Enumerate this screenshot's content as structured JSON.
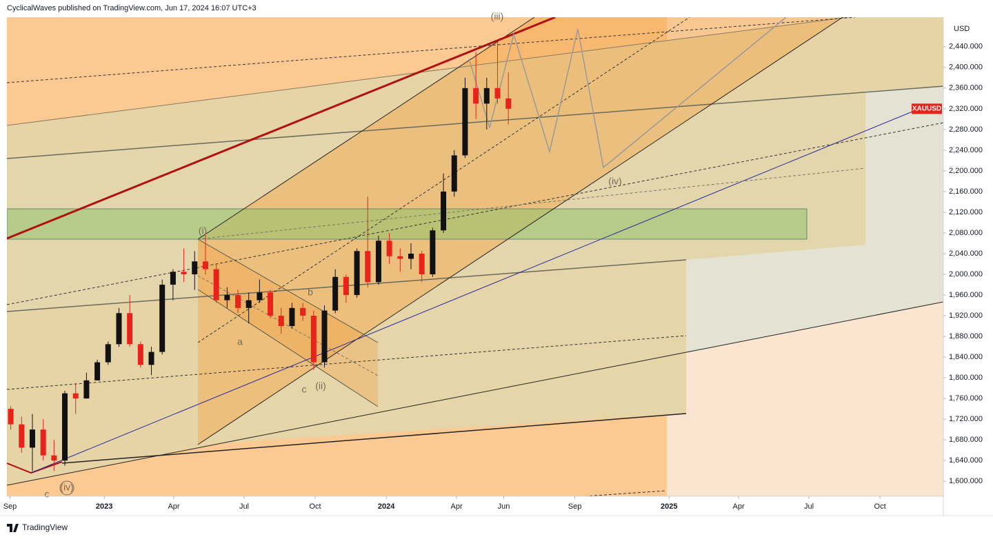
{
  "header": {
    "title": "CyclicalWaves published on TradingView.com, Jun 17, 2024 16:07 UTC+3"
  },
  "footer": {
    "brand": "TradingView"
  },
  "chart_data": {
    "type": "candlestick",
    "symbol": "XAUUSD",
    "currency": "USD",
    "up_color": "#111111",
    "down_color": "#e8231b",
    "annotations": [
      "(iii)",
      "(i)",
      "a",
      "b",
      "c",
      "(ii)",
      "(iv)",
      "c",
      "(iv)"
    ],
    "x": [
      "2022-09-02",
      "2022-09-16",
      "2022-09-30",
      "2022-10-14",
      "2022-10-28",
      "2022-11-11",
      "2022-11-25",
      "2022-12-09",
      "2022-12-23",
      "2023-01-06",
      "2023-01-20",
      "2023-02-03",
      "2023-02-17",
      "2023-03-03",
      "2023-03-17",
      "2023-03-31",
      "2023-04-14",
      "2023-04-28",
      "2023-05-12",
      "2023-05-26",
      "2023-06-09",
      "2023-06-23",
      "2023-07-07",
      "2023-07-21",
      "2023-08-04",
      "2023-08-18",
      "2023-09-01",
      "2023-09-15",
      "2023-09-29",
      "2023-10-13",
      "2023-10-27",
      "2023-11-10",
      "2023-11-24",
      "2023-12-08",
      "2023-12-22",
      "2024-01-05",
      "2024-01-19",
      "2024-02-02",
      "2024-02-16",
      "2024-03-01",
      "2024-03-15",
      "2024-03-29",
      "2024-04-12",
      "2024-04-26",
      "2024-05-10",
      "2024-05-24",
      "2024-06-07"
    ],
    "open": [
      1740,
      1710,
      1665,
      1700,
      1650,
      1640,
      1770,
      1760,
      1795,
      1830,
      1865,
      1925,
      1865,
      1825,
      1850,
      1980,
      2005,
      2000,
      2025,
      2010,
      1950,
      1960,
      1935,
      1950,
      1965,
      1920,
      1900,
      1935,
      1920,
      1830,
      1930,
      1995,
      1960,
      2045,
      1985,
      2065,
      2035,
      2030,
      2040,
      2000,
      2085,
      2160,
      2230,
      2360,
      2330,
      2360,
      2340
    ],
    "high": [
      1745,
      1725,
      1730,
      1720,
      1680,
      1775,
      1790,
      1810,
      1835,
      1870,
      1935,
      1960,
      1870,
      1860,
      1990,
      2010,
      2050,
      2045,
      2075,
      2020,
      1975,
      1970,
      1965,
      1990,
      1970,
      1935,
      1945,
      1945,
      1930,
      1940,
      2010,
      2000,
      2050,
      2150,
      2075,
      2080,
      2050,
      2060,
      2045,
      2090,
      2195,
      2240,
      2380,
      2430,
      2380,
      2450,
      2390
    ],
    "low": [
      1700,
      1655,
      1620,
      1640,
      1620,
      1630,
      1730,
      1760,
      1795,
      1825,
      1860,
      1860,
      1820,
      1805,
      1845,
      1950,
      1985,
      1970,
      2000,
      1945,
      1935,
      1925,
      1905,
      1945,
      1915,
      1885,
      1895,
      1910,
      1815,
      1820,
      1925,
      1945,
      1955,
      1975,
      1980,
      2020,
      2005,
      2010,
      1985,
      1995,
      2080,
      2150,
      2225,
      2300,
      2280,
      2330,
      2290
    ],
    "close": [
      1710,
      1665,
      1700,
      1650,
      1640,
      1770,
      1760,
      1795,
      1830,
      1865,
      1925,
      1865,
      1825,
      1850,
      1980,
      2005,
      2000,
      2025,
      2010,
      1950,
      1960,
      1935,
      1950,
      1965,
      1920,
      1900,
      1935,
      1920,
      1830,
      1930,
      1995,
      1960,
      2045,
      1985,
      2065,
      2035,
      2030,
      2040,
      2000,
      2085,
      2160,
      2230,
      2360,
      2330,
      2360,
      2340,
      2320
    ],
    "xlim": [
      "2022-08-28",
      "2025-12-22"
    ],
    "xticks": [
      {
        "value": "2022-09-01",
        "label": "Sep"
      },
      {
        "value": "2023-01-01",
        "label": "2023"
      },
      {
        "value": "2023-04-01",
        "label": "Apr"
      },
      {
        "value": "2023-07-01",
        "label": "Jul"
      },
      {
        "value": "2023-10-01",
        "label": "Oct"
      },
      {
        "value": "2024-01-01",
        "label": "2024"
      },
      {
        "value": "2024-04-01",
        "label": "Apr"
      },
      {
        "value": "2024-06-01",
        "label": "Jun"
      },
      {
        "value": "2024-09-01",
        "label": "Sep"
      },
      {
        "value": "2025-01-01",
        "label": "2025"
      },
      {
        "value": "2025-04-01",
        "label": "Apr"
      },
      {
        "value": "2025-07-01",
        "label": "Jul"
      },
      {
        "value": "2025-10-01",
        "label": "Oct"
      }
    ],
    "ylim": [
      1571,
      2497
    ],
    "yticks": [
      {
        "value": 1600,
        "label": "1,600.000"
      },
      {
        "value": 1640,
        "label": "1,640.000"
      },
      {
        "value": 1680,
        "label": "1,680.000"
      },
      {
        "value": 1720,
        "label": "1,720.000"
      },
      {
        "value": 1760,
        "label": "1,760.000"
      },
      {
        "value": 1800,
        "label": "1,800.000"
      },
      {
        "value": 1840,
        "label": "1,840.000"
      },
      {
        "value": 1880,
        "label": "1,880.000"
      },
      {
        "value": 1920,
        "label": "1,920.000"
      },
      {
        "value": 1960,
        "label": "1,960.000"
      },
      {
        "value": 2000,
        "label": "2,000.000"
      },
      {
        "value": 2040,
        "label": "2,040.000"
      },
      {
        "value": 2080,
        "label": "2,080.000"
      },
      {
        "value": 2120,
        "label": "2,120.000"
      },
      {
        "value": 2160,
        "label": "2,160.000"
      },
      {
        "value": 2200,
        "label": "2,200.000"
      },
      {
        "value": 2240,
        "label": "2,240.000"
      },
      {
        "value": 2280,
        "label": "2,280.000"
      },
      {
        "value": 2320,
        "label": "2,320.000"
      },
      {
        "value": 2360,
        "label": "2,360.000"
      },
      {
        "value": 2400,
        "label": "2,400.000"
      },
      {
        "value": 2440,
        "label": "2,440.000"
      }
    ]
  }
}
